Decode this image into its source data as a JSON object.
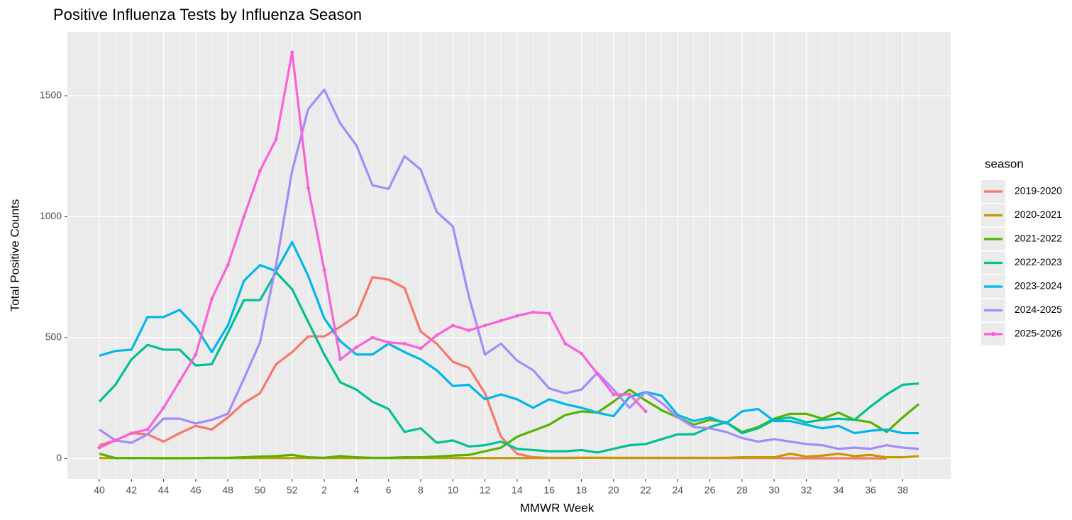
{
  "chart_data": {
    "type": "line",
    "title": "Positive Influenza Tests by Influenza Season",
    "x_label": "MMWR Week",
    "y_label": "Total Positive Counts",
    "legend_title": "season",
    "legend_position": "right",
    "grid": true,
    "categories": [
      40,
      null,
      42,
      null,
      44,
      null,
      46,
      null,
      48,
      null,
      50,
      null,
      52,
      null,
      2,
      null,
      4,
      null,
      6,
      null,
      8,
      null,
      10,
      null,
      12,
      null,
      14,
      null,
      16,
      null,
      18,
      null,
      20,
      null,
      22,
      null,
      24,
      null,
      26,
      null,
      28,
      null,
      30,
      null,
      32,
      null,
      34,
      null,
      36,
      null,
      38,
      null
    ],
    "ylim": [
      -84,
      1764
    ],
    "yticks": [
      0,
      500,
      1000,
      1500
    ],
    "series": [
      {
        "name": "2019-2020",
        "color": "#F8766D",
        "values": [
          55,
          75,
          105,
          100,
          70,
          105,
          135,
          120,
          170,
          230,
          270,
          390,
          440,
          505,
          505,
          545,
          590,
          750,
          740,
          705,
          525,
          475,
          400,
          375,
          270,
          90,
          20,
          5,
          3,
          3,
          3,
          3,
          2,
          2,
          2,
          2,
          2,
          2,
          2,
          2,
          2,
          2,
          2,
          1,
          1,
          1,
          1,
          1,
          1,
          0,
          null,
          null
        ]
      },
      {
        "name": "2020-2021",
        "color": "#C49A00",
        "values": [
          2,
          2,
          2,
          2,
          2,
          2,
          2,
          2,
          2,
          2,
          2,
          2,
          2,
          2,
          2,
          2,
          2,
          2,
          2,
          2,
          2,
          2,
          2,
          2,
          2,
          2,
          2,
          2,
          2,
          2,
          3,
          3,
          3,
          3,
          3,
          3,
          3,
          3,
          3,
          3,
          5,
          5,
          5,
          20,
          8,
          12,
          20,
          10,
          15,
          5,
          5,
          10
        ]
      },
      {
        "name": "2021-2022",
        "color": "#53B400",
        "values": [
          20,
          2,
          2,
          2,
          1,
          1,
          2,
          3,
          3,
          5,
          8,
          10,
          15,
          5,
          3,
          10,
          5,
          3,
          3,
          5,
          5,
          8,
          12,
          15,
          30,
          45,
          90,
          115,
          140,
          180,
          195,
          190,
          235,
          285,
          240,
          200,
          170,
          140,
          160,
          150,
          110,
          130,
          165,
          185,
          185,
          165,
          190,
          160,
          150,
          110,
          170,
          225
        ]
      },
      {
        "name": "2022-2023",
        "color": "#00C094",
        "values": [
          235,
          305,
          410,
          470,
          450,
          450,
          385,
          390,
          520,
          655,
          655,
          770,
          700,
          565,
          430,
          315,
          285,
          235,
          205,
          110,
          125,
          65,
          75,
          50,
          55,
          70,
          40,
          35,
          30,
          30,
          35,
          25,
          40,
          55,
          60,
          80,
          100,
          100,
          130,
          150,
          105,
          125,
          160,
          170,
          150,
          160,
          165,
          160,
          215,
          265,
          305,
          310
        ]
      },
      {
        "name": "2023-2024",
        "color": "#00B6EB",
        "values": [
          425,
          445,
          450,
          585,
          585,
          615,
          545,
          440,
          550,
          735,
          800,
          775,
          895,
          755,
          580,
          485,
          430,
          430,
          475,
          440,
          410,
          365,
          300,
          305,
          245,
          265,
          245,
          210,
          245,
          225,
          210,
          190,
          175,
          255,
          275,
          260,
          180,
          155,
          170,
          145,
          195,
          205,
          155,
          155,
          140,
          125,
          135,
          105,
          115,
          120,
          105,
          105
        ]
      },
      {
        "name": "2024-2025",
        "color": "#A58AFF",
        "values": [
          120,
          75,
          65,
          100,
          165,
          165,
          145,
          160,
          185,
          330,
          480,
          800,
          1190,
          1445,
          1525,
          1385,
          1295,
          1130,
          1115,
          1250,
          1195,
          1020,
          960,
          670,
          430,
          475,
          405,
          365,
          290,
          270,
          285,
          355,
          285,
          210,
          275,
          230,
          170,
          130,
          125,
          110,
          85,
          70,
          80,
          70,
          60,
          55,
          40,
          45,
          40,
          55,
          45,
          40
        ]
      },
      {
        "name": "2025-2026",
        "color": "#FB61D7",
        "markers": true,
        "values": [
          45,
          75,
          105,
          120,
          210,
          320,
          430,
          660,
          800,
          1000,
          1190,
          1320,
          1680,
          1120,
          780,
          410,
          460,
          500,
          480,
          475,
          455,
          510,
          550,
          530,
          550,
          570,
          590,
          605,
          600,
          475,
          435,
          350,
          265,
          265,
          195,
          null,
          null,
          null,
          null,
          null,
          null,
          null,
          null,
          null,
          null,
          null,
          null,
          null,
          null,
          null,
          null,
          null
        ]
      }
    ]
  }
}
